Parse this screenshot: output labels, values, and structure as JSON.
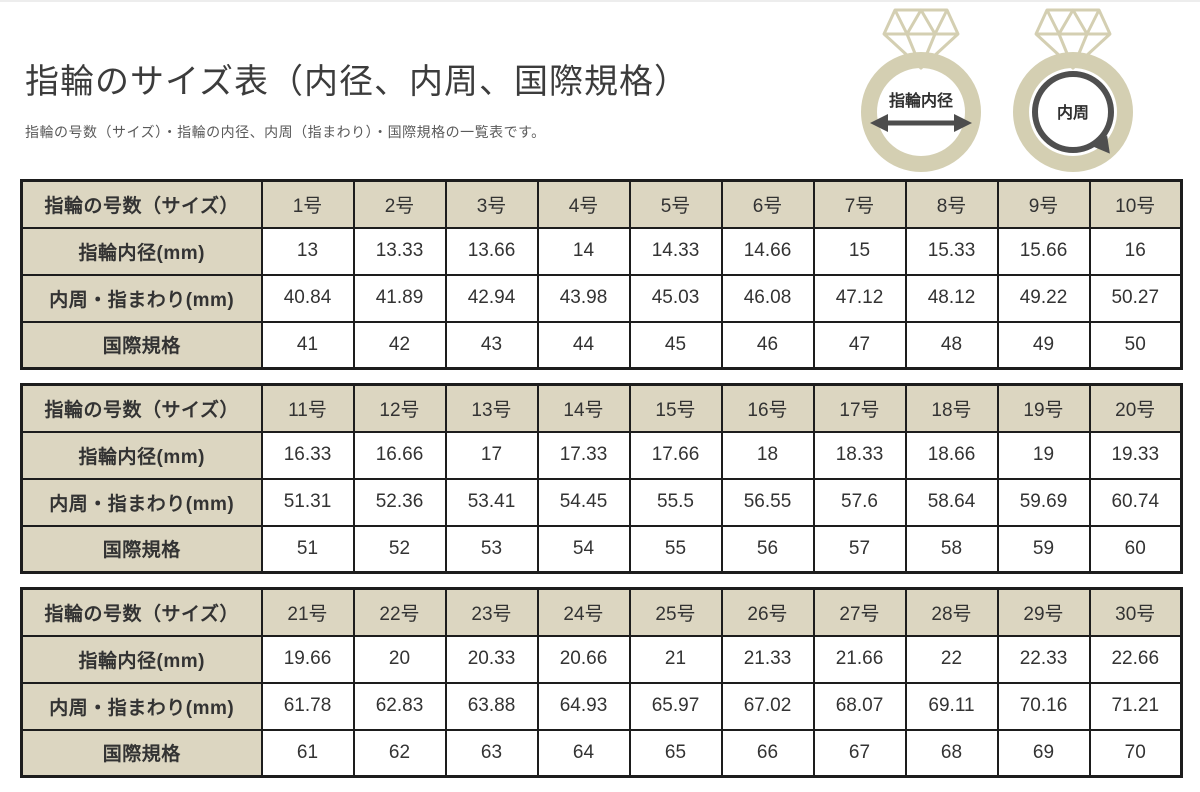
{
  "page": {
    "title": "指輪のサイズ表（内径、内周、国際規格）",
    "subtitle": "指輪の号数（サイズ）・指輪の内径、内周（指まわり）・国際規格の一覧表です。"
  },
  "illustrations": {
    "inner_diameter_label": "指輪内径",
    "circumference_label": "内周"
  },
  "row_labels": {
    "size": "指輪の号数（サイズ）",
    "inner_diameter": "指輪内径(mm)",
    "circumference": "内周・指まわり(mm)",
    "international": "国際規格"
  },
  "colors": {
    "cell_beige": "#dcd6c1",
    "table_border": "#1d1d1d",
    "ring_band": "#d4cfb2",
    "arrow_dark": "#4d4d4d",
    "title_text": "#3c3c3c",
    "subtitle_text": "#5a5a5a",
    "cell_text": "#333333"
  },
  "chart_data": {
    "type": "table",
    "title": "指輪のサイズ表（内径、内周、国際規格）",
    "tables": [
      {
        "sizes": [
          "1号",
          "2号",
          "3号",
          "4号",
          "5号",
          "6号",
          "7号",
          "8号",
          "9号",
          "10号"
        ],
        "inner_diameter": [
          "13",
          "13.33",
          "13.66",
          "14",
          "14.33",
          "14.66",
          "15",
          "15.33",
          "15.66",
          "16"
        ],
        "circumference": [
          "40.84",
          "41.89",
          "42.94",
          "43.98",
          "45.03",
          "46.08",
          "47.12",
          "48.12",
          "49.22",
          "50.27"
        ],
        "international": [
          "41",
          "42",
          "43",
          "44",
          "45",
          "46",
          "47",
          "48",
          "49",
          "50"
        ]
      },
      {
        "sizes": [
          "11号",
          "12号",
          "13号",
          "14号",
          "15号",
          "16号",
          "17号",
          "18号",
          "19号",
          "20号"
        ],
        "inner_diameter": [
          "16.33",
          "16.66",
          "17",
          "17.33",
          "17.66",
          "18",
          "18.33",
          "18.66",
          "19",
          "19.33"
        ],
        "circumference": [
          "51.31",
          "52.36",
          "53.41",
          "54.45",
          "55.5",
          "56.55",
          "57.6",
          "58.64",
          "59.69",
          "60.74"
        ],
        "international": [
          "51",
          "52",
          "53",
          "54",
          "55",
          "56",
          "57",
          "58",
          "59",
          "60"
        ]
      },
      {
        "sizes": [
          "21号",
          "22号",
          "23号",
          "24号",
          "25号",
          "26号",
          "27号",
          "28号",
          "29号",
          "30号"
        ],
        "inner_diameter": [
          "19.66",
          "20",
          "20.33",
          "20.66",
          "21",
          "21.33",
          "21.66",
          "22",
          "22.33",
          "22.66"
        ],
        "circumference": [
          "61.78",
          "62.83",
          "63.88",
          "64.93",
          "65.97",
          "67.02",
          "68.07",
          "69.11",
          "70.16",
          "71.21"
        ],
        "international": [
          "61",
          "62",
          "63",
          "64",
          "65",
          "66",
          "67",
          "68",
          "69",
          "70"
        ]
      }
    ]
  }
}
